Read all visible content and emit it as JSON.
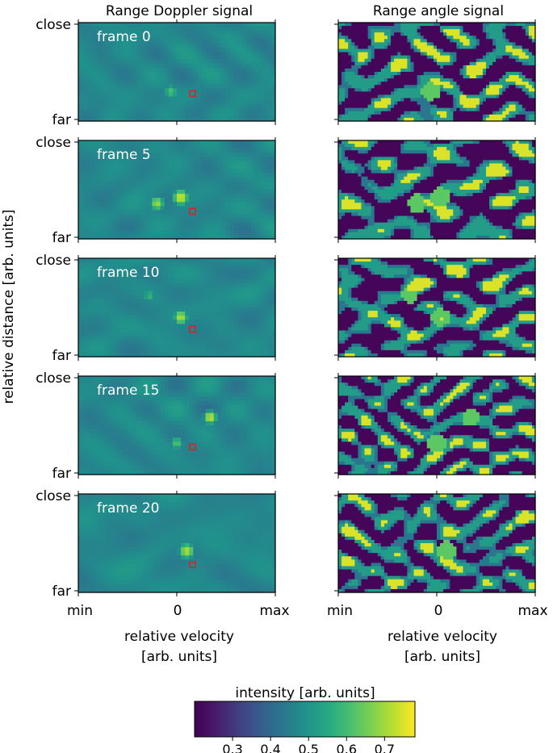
{
  "chart_data": {
    "type": "heatmap",
    "columns": [
      {
        "title": "Range Doppler signal",
        "xlabel": [
          "relative velocity",
          "[arb. units]"
        ],
        "xticks": [
          "min",
          "0",
          "max"
        ]
      },
      {
        "title": "Range angle signal",
        "xlabel": [
          "relative velocity",
          "[arb. units]"
        ],
        "xticks": [
          "min",
          "0",
          "max"
        ]
      }
    ],
    "ylabel": "relative distance  [arb. units]",
    "yticks": [
      "close",
      "far"
    ],
    "frames": [
      {
        "label": "frame 0",
        "marker": [
          0.58,
          0.72
        ],
        "blobs": [
          [
            0.47,
            0.7,
            0.12,
            0.62
          ]
        ]
      },
      {
        "label": "frame 5",
        "marker": [
          0.58,
          0.72
        ],
        "blobs": [
          [
            0.52,
            0.58,
            0.13,
            0.75
          ],
          [
            0.4,
            0.64,
            0.12,
            0.7
          ]
        ]
      },
      {
        "label": "frame 10",
        "marker": [
          0.58,
          0.72
        ],
        "blobs": [
          [
            0.52,
            0.6,
            0.12,
            0.72
          ],
          [
            0.36,
            0.38,
            0.1,
            0.6
          ]
        ]
      },
      {
        "label": "frame 15",
        "marker": [
          0.58,
          0.72
        ],
        "blobs": [
          [
            0.67,
            0.42,
            0.11,
            0.74
          ],
          [
            0.5,
            0.68,
            0.12,
            0.62
          ]
        ]
      },
      {
        "label": "frame 20",
        "marker": [
          0.58,
          0.72
        ],
        "blobs": [
          [
            0.55,
            0.58,
            0.13,
            0.72
          ]
        ]
      }
    ],
    "colorbar": {
      "label": "intensity [arb. units]",
      "range": [
        0.2,
        0.78
      ],
      "ticks": [
        0.3,
        0.4,
        0.5,
        0.6,
        0.7
      ],
      "tick_labels": [
        "0.3",
        "0.4",
        "0.5",
        "0.6",
        "0.7"
      ],
      "colormap": "viridis"
    },
    "marker_color": "#e02020"
  }
}
